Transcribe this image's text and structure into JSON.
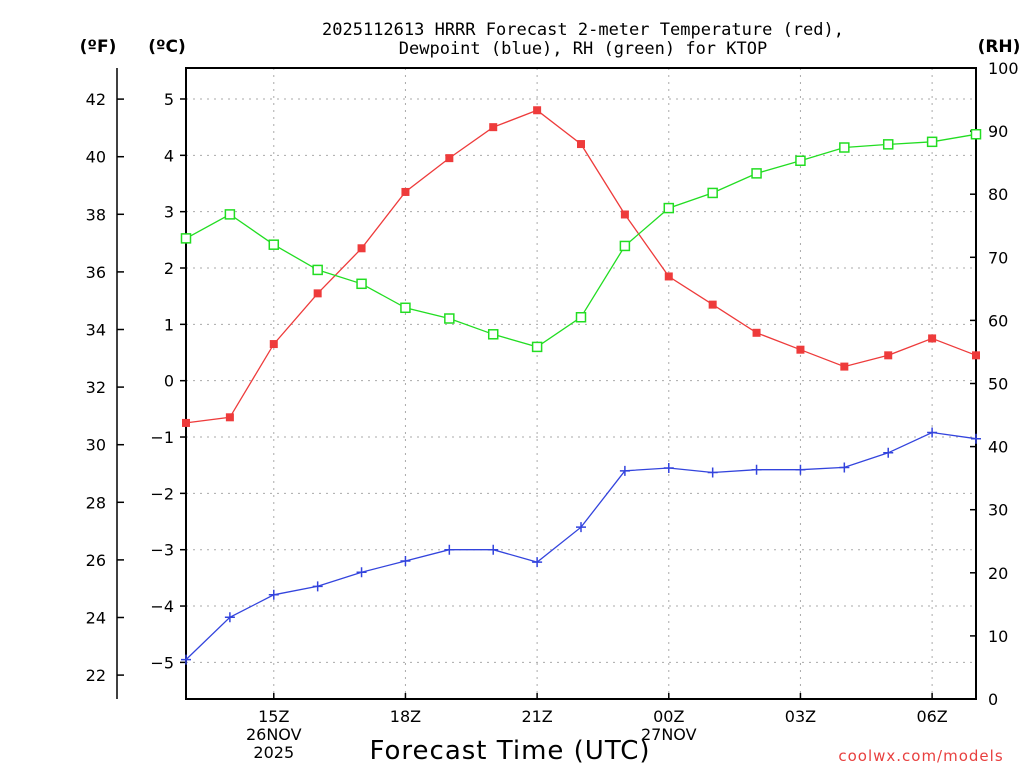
{
  "chart_data": {
    "type": "line",
    "title": [
      "2025112613 HRRR Forecast 2-meter Temperature (red),",
      "Dewpoint (blue), RH (green) for KTOP"
    ],
    "xlabel": "Forecast Time (UTC)",
    "credit": "coolwx.com/models",
    "units": {
      "fahrenheit": "(ºF)",
      "celsius": "(ºC)",
      "rh": "(RH)"
    },
    "x": [
      13,
      14,
      15,
      16,
      17,
      18,
      19,
      20,
      21,
      22,
      23,
      24,
      25,
      26,
      27,
      28,
      29,
      30,
      31
    ],
    "xlim": [
      13,
      31
    ],
    "x_ticks": [
      {
        "x": 15,
        "lines": [
          "15Z",
          "26NOV",
          "2025"
        ]
      },
      {
        "x": 18,
        "lines": [
          "18Z"
        ]
      },
      {
        "x": 21,
        "lines": [
          "21Z"
        ]
      },
      {
        "x": 24,
        "lines": [
          "00Z",
          "27NOV"
        ]
      },
      {
        "x": 27,
        "lines": [
          "03Z"
        ]
      },
      {
        "x": 30,
        "lines": [
          "06Z"
        ]
      }
    ],
    "celsius_axis": {
      "ylim": [
        -5.65,
        5.55
      ],
      "ticks": [
        "5",
        "4",
        "3",
        "2",
        "1",
        "0",
        "−1",
        "−2",
        "−3",
        "−4",
        "−5"
      ]
    },
    "fahrenheit_axis": {
      "ylim": [
        21.17,
        43.08
      ],
      "ticks": [
        "42",
        "40",
        "38",
        "36",
        "34",
        "32",
        "30",
        "28",
        "26",
        "24",
        "22"
      ]
    },
    "rh_axis": {
      "ylim": [
        0,
        100
      ],
      "ticks": [
        "100",
        "90",
        "80",
        "70",
        "60",
        "50",
        "40",
        "30",
        "20",
        "10",
        "0"
      ]
    },
    "series": [
      {
        "name": "Temperature",
        "axis": "celsius",
        "color": "#ee3b3b",
        "marker": "filled-square",
        "values": [
          -0.75,
          -0.65,
          0.65,
          1.55,
          2.35,
          3.35,
          3.95,
          4.5,
          4.8,
          4.2,
          2.95,
          1.85,
          1.35,
          0.85,
          0.55,
          0.25,
          0.45,
          0.75,
          0.45
        ]
      },
      {
        "name": "Dewpoint",
        "axis": "celsius",
        "color": "#3344dd",
        "marker": "plus",
        "values": [
          -4.95,
          -4.2,
          -3.8,
          -3.65,
          -3.4,
          -3.2,
          -3.0,
          -3.0,
          -3.22,
          -2.6,
          -1.6,
          -1.55,
          -1.63,
          -1.58,
          -1.58,
          -1.54,
          -1.28,
          -0.92,
          -1.03
        ]
      },
      {
        "name": "RH",
        "axis": "rh",
        "color": "#22dd22",
        "marker": "open-square",
        "values": [
          73,
          76.8,
          72,
          68,
          65.8,
          62,
          60.3,
          57.8,
          55.8,
          60.5,
          71.8,
          77.8,
          80.2,
          83.3,
          85.3,
          87.4,
          87.9,
          88.3,
          89.5
        ]
      }
    ]
  }
}
